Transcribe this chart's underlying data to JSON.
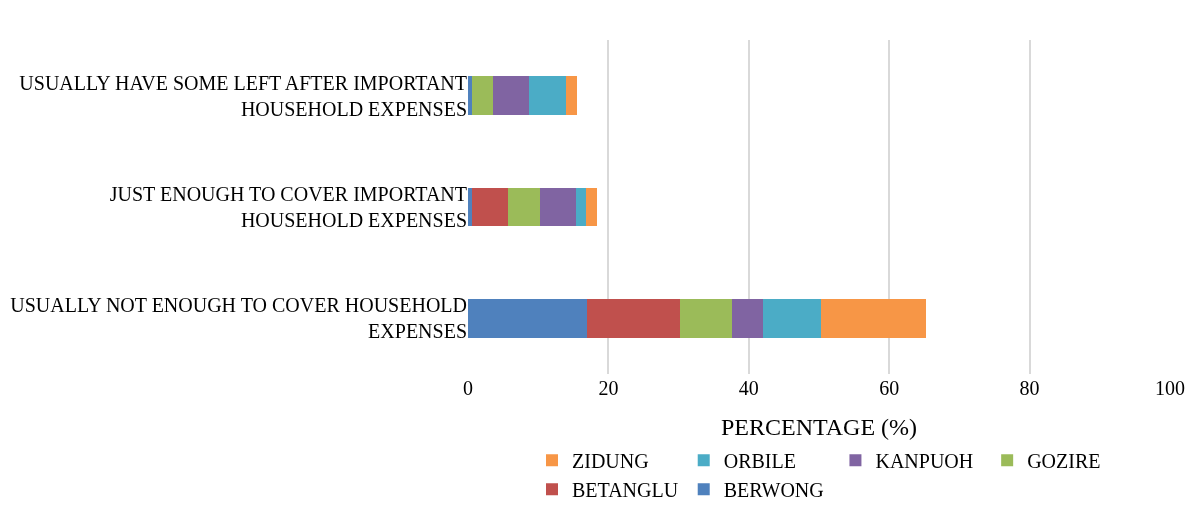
{
  "chart_data": {
    "type": "bar",
    "orientation": "horizontal",
    "stacked": true,
    "xlabel": "PERCENTAGE (%)",
    "categories": [
      "USUALLY HAVE SOME LEFT AFTER IMPORTANT HOUSEHOLD EXPENSES",
      "JUST ENOUGH TO COVER IMPORTANT HOUSEHOLD EXPENSES",
      "USUALLY NOT ENOUGH TO COVER HOUSEHOLD EXPENSES"
    ],
    "series": [
      {
        "name": "BERWONG",
        "color": "#4f81bd",
        "values": [
          0.5,
          0.5,
          17.0
        ]
      },
      {
        "name": "BETANGLU",
        "color": "#c0504d",
        "values": [
          0,
          5.2,
          13.2
        ]
      },
      {
        "name": "GOZIRE",
        "color": "#9bbb59",
        "values": [
          3.1,
          4.6,
          7.4
        ]
      },
      {
        "name": "KANPUOH",
        "color": "#8064a2",
        "values": [
          5.1,
          5.1,
          4.4
        ]
      },
      {
        "name": "ORBILE",
        "color": "#4bacc6",
        "values": [
          5.3,
          1.4,
          8.3
        ]
      },
      {
        "name": "ZIDUNG",
        "color": "#f79646",
        "values": [
          1.5,
          1.6,
          14.9
        ]
      }
    ],
    "xlim": [
      0,
      100
    ],
    "xticks": [
      0,
      20,
      40,
      60,
      80,
      100
    ],
    "grid": "x",
    "legend": "bottom"
  }
}
